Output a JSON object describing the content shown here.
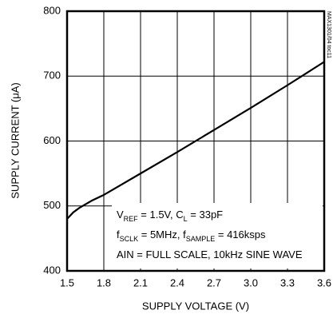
{
  "chart_data": {
    "type": "line",
    "xlabel": "SUPPLY VOLTAGE (V)",
    "ylabel": "SUPPLY CURRENT (μA)",
    "code": "MAX1301/04 toc11",
    "x": [
      1.5,
      1.55,
      1.6,
      1.7,
      1.8,
      2.1,
      2.4,
      2.7,
      3.0,
      3.3,
      3.6
    ],
    "series": [
      {
        "color": "#000000",
        "values": [
          480,
          490,
          497,
          508,
          517,
          550,
          583,
          617,
          651,
          686,
          722
        ]
      }
    ],
    "xlim": [
      1.5,
      3.6
    ],
    "xticks": [
      1.5,
      1.8,
      2.1,
      2.4,
      2.7,
      {
        "value": 3,
        "label": "3.0"
      },
      3.3,
      3.6
    ],
    "ylim": [
      400,
      800
    ],
    "yticks": [
      400,
      500,
      600,
      700,
      800
    ],
    "grid": true,
    "annotations": [
      [
        {
          "text": "V"
        },
        {
          "text": "REF",
          "sub": true
        },
        {
          "text": " = 1.5V, C"
        },
        {
          "text": "L",
          "sub": true
        },
        {
          "text": " = 33pF"
        }
      ],
      [
        {
          "text": "f"
        },
        {
          "text": "SCLK",
          "sub": true
        },
        {
          "text": " = 5MHz, f"
        },
        {
          "text": "SAMPLE",
          "sub": true
        },
        {
          "text": " = 416ksps"
        }
      ],
      [
        {
          "text": "AIN = FULL SCALE, 10kHz SINE WAVE"
        }
      ]
    ]
  }
}
